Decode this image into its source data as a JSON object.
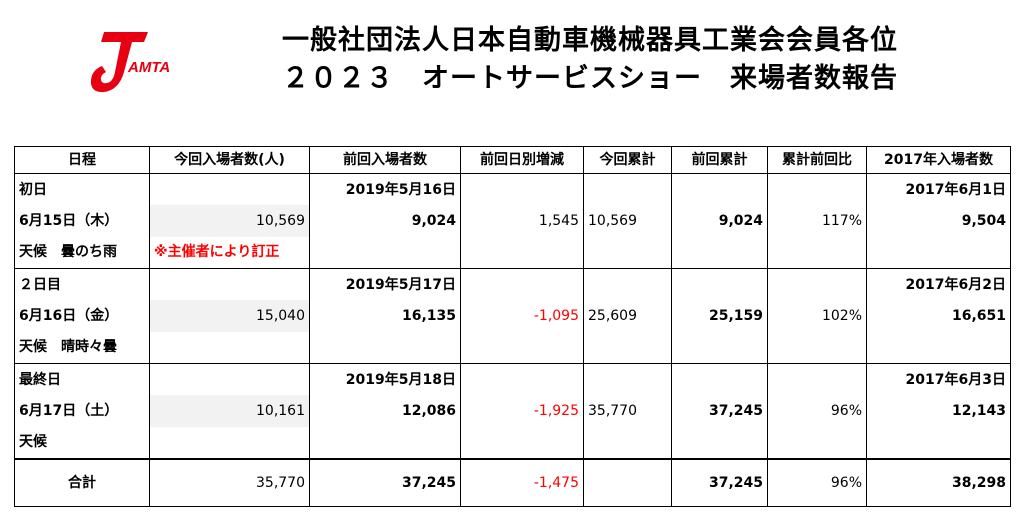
{
  "header": {
    "logo_text": "AMTA",
    "title_line1": "一般社団法人日本自動車機械器具工業会会員各位",
    "title_line2": "２０２３　オートサービスショー　来場者数報告"
  },
  "table": {
    "columns": [
      "日程",
      "今回入場者数(人)",
      "前回入場者数",
      "前回日別増減",
      "今回累計",
      "前回累計",
      "累計前回比",
      "2017年入場者数"
    ],
    "days": [
      {
        "label": "初日",
        "date": "6月15日（木）",
        "weather": "天候　曇のち雨",
        "current": "10,569",
        "note": "※主催者により訂正",
        "prev_date": "2019年5月16日",
        "prev": "9,024",
        "diff": "1,545",
        "cum": "10,569",
        "prev_cum": "9,024",
        "ratio": "117%",
        "y2017_date": "2017年6月1日",
        "y2017": "9,504"
      },
      {
        "label": "２日目",
        "date": "6月16日（金）",
        "weather": "天候　晴時々曇",
        "current": "15,040",
        "note": "",
        "prev_date": "2019年5月17日",
        "prev": "16,135",
        "diff": "-1,095",
        "cum": "25,609",
        "prev_cum": "25,159",
        "ratio": "102%",
        "y2017_date": "2017年6月2日",
        "y2017": "16,651"
      },
      {
        "label": "最終日",
        "date": "6月17日（土）",
        "weather": "天候",
        "current": "10,161",
        "note": "",
        "prev_date": "2019年5月18日",
        "prev": "12,086",
        "diff": "-1,925",
        "cum": "35,770",
        "prev_cum": "37,245",
        "ratio": "96%",
        "y2017_date": "2017年6月3日",
        "y2017": "12,143"
      }
    ],
    "total": {
      "label": "合計",
      "current": "35,770",
      "prev": "37,245",
      "diff": "-1,475",
      "cum": "",
      "prev_cum": "37,245",
      "ratio": "96%",
      "y2017": "38,298"
    }
  },
  "colors": {
    "accent": "#e60012",
    "negative": "#ff0000",
    "shade": "#f2f2f2"
  }
}
